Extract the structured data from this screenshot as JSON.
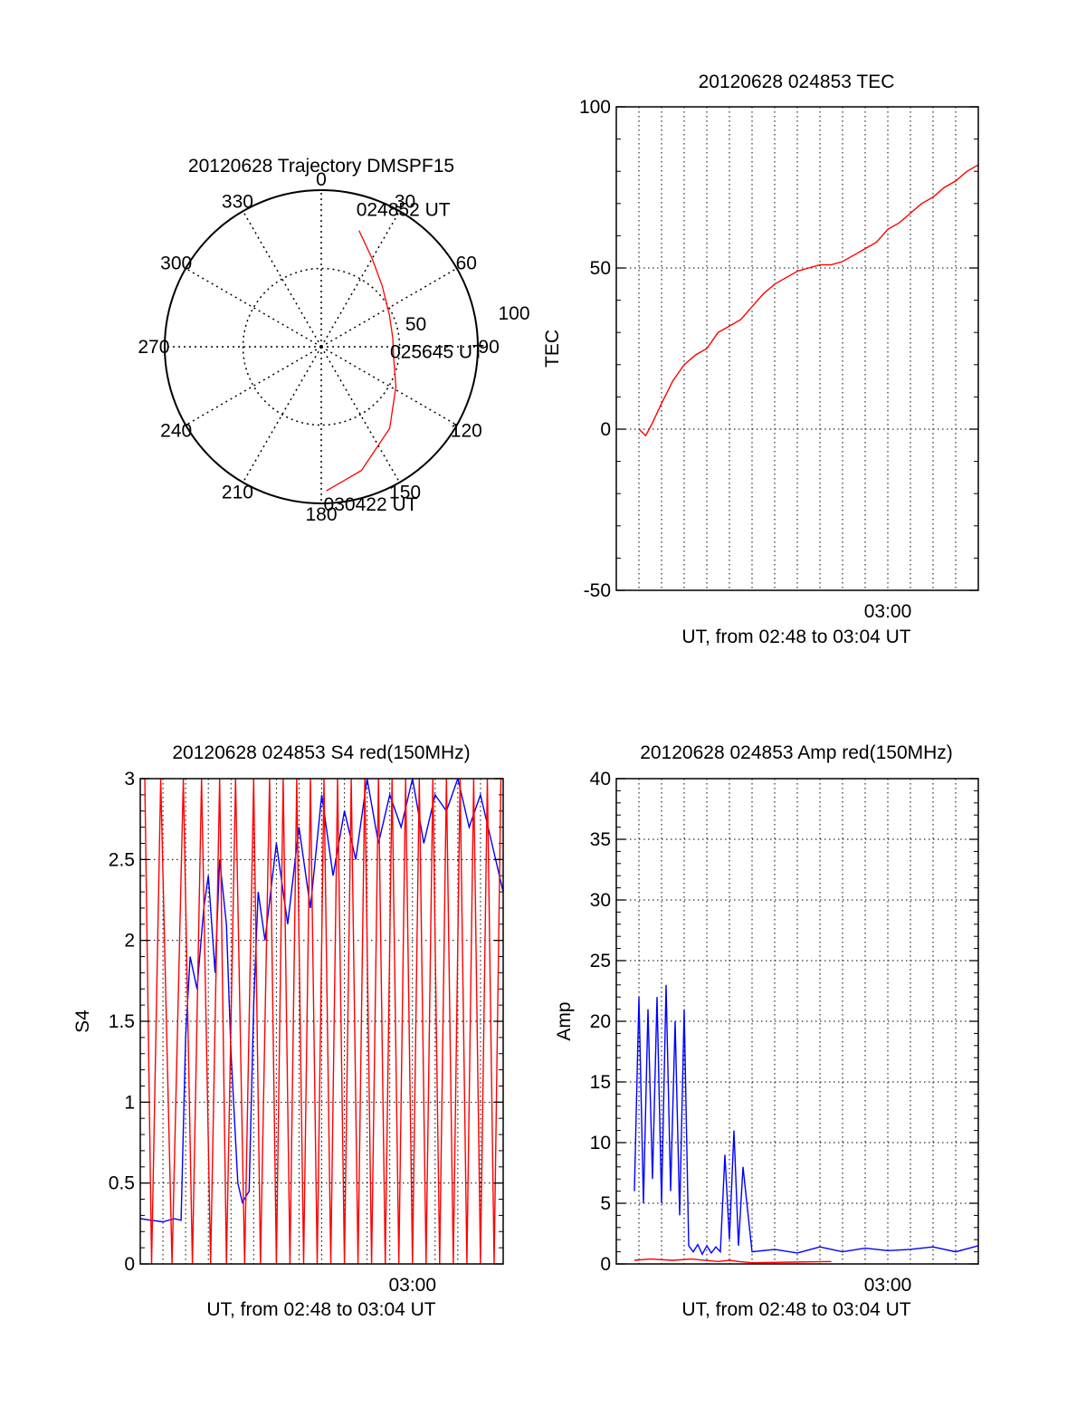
{
  "chart_data": [
    {
      "id": "trajectory",
      "type": "polar",
      "title": "20120628 Trajectory DMSPF15",
      "angle_ticks": [
        "0",
        "30",
        "60",
        "90",
        "120",
        "150",
        "180",
        "210",
        "240",
        "270",
        "300",
        "330"
      ],
      "radial_ticks": [
        "50",
        "100"
      ],
      "rmax": 100,
      "track": [
        {
          "az": 18,
          "r": 78
        },
        {
          "az": 30,
          "r": 65
        },
        {
          "az": 45,
          "r": 55
        },
        {
          "az": 65,
          "r": 48
        },
        {
          "az": 83,
          "r": 46
        },
        {
          "az": 100,
          "r": 47
        },
        {
          "az": 118,
          "r": 54
        },
        {
          "az": 140,
          "r": 68
        },
        {
          "az": 162,
          "r": 83
        },
        {
          "az": 178,
          "r": 92
        }
      ],
      "annotations": [
        {
          "text": "024852 UT",
          "az": 18,
          "r": 78
        },
        {
          "text": "025645 UT",
          "az": 83,
          "r": 46
        },
        {
          "text": "030422 UT",
          "az": 178,
          "r": 92
        }
      ],
      "track_color": "#ff0000"
    },
    {
      "id": "tec",
      "type": "line",
      "title": "20120628 024853 TEC",
      "xlabel": "UT, from 02:48 to 03:04 UT",
      "ylabel": "TEC",
      "xlim": [
        0,
        16
      ],
      "ylim": [
        -50,
        100
      ],
      "yticks": [
        -50,
        0,
        50,
        100
      ],
      "xtick_labels": [
        {
          "x": 12,
          "label": "03:00"
        }
      ],
      "grid": true,
      "series": [
        {
          "color": "#ff0000",
          "x": [
            1,
            1.3,
            1.6,
            2,
            2.5,
            3,
            3.5,
            4,
            4.5,
            5,
            5.5,
            6,
            6.5,
            7,
            7.5,
            8,
            8.5,
            9,
            9.5,
            10,
            10.5,
            11,
            11.5,
            12,
            12.5,
            13,
            13.5,
            14,
            14.5,
            15,
            15.5,
            16
          ],
          "y": [
            0,
            -2,
            2,
            8,
            15,
            20,
            23,
            25,
            30,
            32,
            34,
            38,
            42,
            45,
            47,
            49,
            50,
            51,
            51,
            52,
            54,
            56,
            58,
            62,
            64,
            67,
            70,
            72,
            75,
            77,
            80,
            82
          ]
        }
      ]
    },
    {
      "id": "s4",
      "type": "line",
      "title": "20120628 024853 S4 red(150MHz)",
      "xlabel": "UT, from 02:48 to 03:04 UT",
      "ylabel": "S4",
      "xlim": [
        0,
        16
      ],
      "ylim": [
        0,
        3
      ],
      "yticks": [
        "0",
        "0.5",
        "1",
        "1.5",
        "2",
        "2.5",
        "3"
      ],
      "xtick_labels": [
        {
          "x": 12,
          "label": "03:00"
        }
      ],
      "grid": true,
      "series": [
        {
          "color": "#0000ff",
          "x": [
            0,
            0.5,
            1,
            1.5,
            1.8,
            2,
            2.2,
            2.5,
            2.8,
            3,
            3.3,
            3.5,
            3.8,
            4,
            4.3,
            4.5,
            4.8,
            5,
            5.2,
            5.5,
            6,
            6.5,
            7,
            7.5,
            8,
            8.5,
            9,
            9.5,
            10,
            10.5,
            11,
            11.5,
            12,
            12.5,
            13,
            13.5,
            14,
            14.5,
            15,
            15.5,
            16
          ],
          "y": [
            0.28,
            0.27,
            0.26,
            0.28,
            0.27,
            1.4,
            1.9,
            1.7,
            2.2,
            2.4,
            1.8,
            2.5,
            2.1,
            1.3,
            0.5,
            0.38,
            0.45,
            1.6,
            2.3,
            2.0,
            2.6,
            2.1,
            2.7,
            2.2,
            2.9,
            2.4,
            2.8,
            2.5,
            3.0,
            2.6,
            2.9,
            2.7,
            3.0,
            2.6,
            2.9,
            2.8,
            3.0,
            2.7,
            2.9,
            2.6,
            2.3
          ]
        },
        {
          "color": "#ff0000",
          "x": [
            0.2,
            0.5,
            0.9,
            1.4,
            1.9,
            2.3,
            2.7,
            3.1,
            3.5,
            3.8,
            4.2,
            4.6,
            5.0,
            5.3,
            5.7,
            6.0,
            6.3,
            6.6,
            6.9,
            7.2,
            7.5,
            7.8,
            8.1,
            8.4,
            8.7,
            9.0,
            9.3,
            9.6,
            9.9,
            10.2,
            10.5,
            10.8,
            11.1,
            11.4,
            11.7,
            12.0,
            12.3,
            12.6,
            12.9,
            13.2,
            13.5,
            13.8,
            14.1,
            14.4,
            14.7,
            15.0,
            15.3,
            15.6,
            15.9
          ],
          "y": [
            3,
            0,
            3,
            0,
            3,
            0,
            3,
            0,
            3,
            0,
            3,
            0,
            3,
            0,
            3,
            0,
            3,
            0,
            3,
            0,
            3,
            0,
            3,
            0,
            3,
            0,
            3,
            0,
            3,
            0,
            3,
            0,
            3,
            0,
            3,
            0,
            3,
            0,
            3,
            0,
            3,
            0,
            3,
            0,
            3,
            0,
            3,
            0,
            3
          ]
        }
      ]
    },
    {
      "id": "amp",
      "type": "line",
      "title": "20120628 024853 Amp red(150MHz)",
      "xlabel": "UT, from 02:48 to 03:04 UT",
      "ylabel": "Amp",
      "xlim": [
        0,
        16
      ],
      "ylim": [
        0,
        40
      ],
      "yticks": [
        0,
        5,
        10,
        15,
        20,
        25,
        30,
        35,
        40
      ],
      "xtick_labels": [
        {
          "x": 12,
          "label": "03:00"
        }
      ],
      "grid": true,
      "series": [
        {
          "color": "#0000ff",
          "x": [
            0.8,
            1.0,
            1.2,
            1.4,
            1.6,
            1.8,
            2.0,
            2.2,
            2.4,
            2.6,
            2.8,
            3.0,
            3.2,
            3.4,
            3.6,
            3.8,
            4.0,
            4.2,
            4.4,
            4.6,
            4.8,
            5.0,
            5.2,
            5.4,
            5.6,
            6,
            7,
            8,
            9,
            10,
            11,
            12,
            13,
            14,
            15,
            16
          ],
          "y": [
            6,
            22,
            5,
            21,
            7,
            22,
            5,
            23,
            6,
            20,
            4,
            21,
            1.5,
            1.0,
            1.6,
            0.8,
            1.5,
            0.9,
            1.4,
            1.0,
            9,
            2,
            11,
            1.5,
            8,
            1.0,
            1.2,
            0.9,
            1.4,
            1.0,
            1.3,
            1.1,
            1.2,
            1.4,
            1.0,
            1.5
          ]
        },
        {
          "color": "#ff0000",
          "x": [
            0.8,
            1.5,
            2.5,
            3.3,
            4.5,
            5.0,
            5.4,
            6.0,
            9.5
          ],
          "y": [
            0.3,
            0.4,
            0.3,
            0.4,
            0.2,
            0.3,
            0.2,
            0.1,
            0.2
          ]
        }
      ]
    }
  ]
}
